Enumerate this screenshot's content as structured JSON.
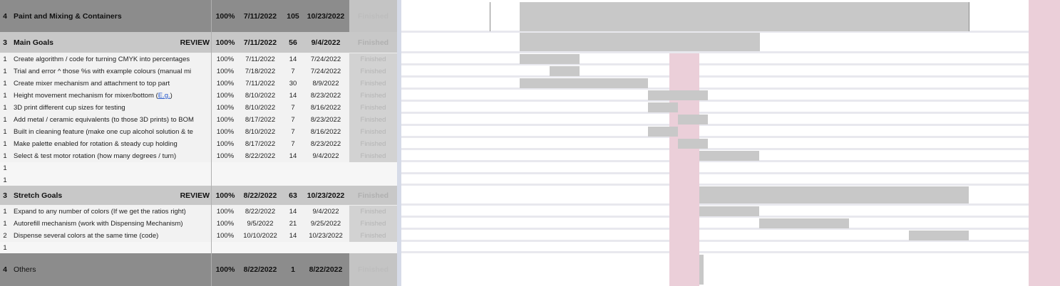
{
  "colors": {
    "header_dark": "#8c8c8c",
    "header_mid": "#c8c8c8",
    "task_row": "#f2f2f2",
    "status_cell": "#d2d2d2",
    "gantt_bar": "#c8c8c8",
    "today_highlight": "#ebcfd9"
  },
  "rows": [
    {
      "level": "4",
      "task": "Paint and Mixing & Containers",
      "tag": "",
      "pct": "100%",
      "start": "7/11/2022",
      "days": "105",
      "end": "10/23/2022",
      "status": "Finished"
    },
    {
      "level": "3",
      "task": "Main Goals",
      "tag": "REVIEW",
      "pct": "100%",
      "start": "7/11/2022",
      "days": "56",
      "end": "9/4/2022",
      "status": "Finished"
    },
    {
      "level": "1",
      "task": "Create algorithm / code for turning CMYK into percentages",
      "tag": "",
      "pct": "100%",
      "start": "7/11/2022",
      "days": "14",
      "end": "7/24/2022",
      "status": "Finished"
    },
    {
      "level": "1",
      "task": "Trial and error  ^ those %s with example colours (manual mi",
      "tag": "",
      "pct": "100%",
      "start": "7/18/2022",
      "days": "7",
      "end": "7/24/2022",
      "status": "Finished"
    },
    {
      "level": "1",
      "task": "Create mixer mechanism and attachment to top part",
      "tag": "",
      "pct": "100%",
      "start": "7/11/2022",
      "days": "30",
      "end": "8/9/2022",
      "status": "Finished"
    },
    {
      "level": "1",
      "task": "Height movement mechanism for mixer/bottom",
      "link": "E.g.",
      "tag": "",
      "pct": "100%",
      "start": "8/10/2022",
      "days": "14",
      "end": "8/23/2022",
      "status": "Finished"
    },
    {
      "level": "1",
      "task": "3D print different cup sizes for testing",
      "tag": "",
      "pct": "100%",
      "start": "8/10/2022",
      "days": "7",
      "end": "8/16/2022",
      "status": "Finished"
    },
    {
      "level": "1",
      "task": "Add metal / ceramic equivalents (to those 3D prints) to BOM",
      "tag": "",
      "pct": "100%",
      "start": "8/17/2022",
      "days": "7",
      "end": "8/23/2022",
      "status": "Finished"
    },
    {
      "level": "1",
      "task": "Built in cleaning feature (make one cup alcohol solution & te",
      "tag": "",
      "pct": "100%",
      "start": "8/10/2022",
      "days": "7",
      "end": "8/16/2022",
      "status": "Finished"
    },
    {
      "level": "1",
      "task": "Make palette enabled for rotation & steady cup holding",
      "tag": "",
      "pct": "100%",
      "start": "8/17/2022",
      "days": "7",
      "end": "8/23/2022",
      "status": "Finished"
    },
    {
      "level": "1",
      "task": "Select & test motor rotation (how many degrees / turn)",
      "tag": "",
      "pct": "100%",
      "start": "8/22/2022",
      "days": "14",
      "end": "9/4/2022",
      "status": "Finished"
    },
    {
      "level": "1",
      "task": "",
      "tag": "",
      "pct": "",
      "start": "",
      "days": "",
      "end": "",
      "status": ""
    },
    {
      "level": "1",
      "task": "",
      "tag": "",
      "pct": "",
      "start": "",
      "days": "",
      "end": "",
      "status": ""
    },
    {
      "level": "3",
      "task": "Stretch Goals",
      "tag": "REVIEW",
      "pct": "100%",
      "start": "8/22/2022",
      "days": "63",
      "end": "10/23/2022",
      "status": "Finished"
    },
    {
      "level": "1",
      "task": "Expand to any number of colors (If we get the ratios right)",
      "tag": "",
      "pct": "100%",
      "start": "8/22/2022",
      "days": "14",
      "end": "9/4/2022",
      "status": "Finished"
    },
    {
      "level": "1",
      "task": "Autorefill mechanism (work with Dispensing Mechanism)",
      "tag": "",
      "pct": "100%",
      "start": "9/5/2022",
      "days": "21",
      "end": "9/25/2022",
      "status": "Finished"
    },
    {
      "level": "2",
      "task": "Dispense several colors at the same time (code)",
      "tag": "",
      "pct": "100%",
      "start": "10/10/2022",
      "days": "14",
      "end": "10/23/2022",
      "status": "Finished"
    },
    {
      "level": "1",
      "task": "",
      "tag": "",
      "pct": "",
      "start": "",
      "days": "",
      "end": "",
      "status": ""
    },
    {
      "level": "4",
      "task": "Others",
      "tag": "",
      "pct": "100%",
      "start": "8/22/2022",
      "days": "1",
      "end": "8/22/2022",
      "status": "Finished"
    }
  ]
}
